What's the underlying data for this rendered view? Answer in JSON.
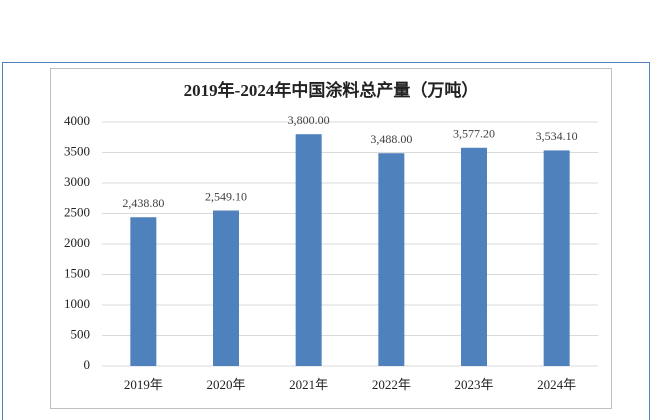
{
  "chart_data": {
    "type": "bar",
    "title": "2019年-2024年中国涂料总产量（万吨）",
    "categories": [
      "2019年",
      "2020年",
      "2021年",
      "2022年",
      "2023年",
      "2024年"
    ],
    "values": [
      2438.8,
      2549.1,
      3800,
      3488,
      3577.2,
      3534.1
    ],
    "value_labels": [
      "2,438.80",
      "2,549.10",
      "3,800.00",
      "3,488.00",
      "3,577.20",
      "3,534.10"
    ],
    "color": "#4f81bd",
    "ylim": [
      0,
      4000
    ],
    "yticks": [
      0,
      500,
      1000,
      1500,
      2000,
      2500,
      3000,
      3500,
      4000
    ],
    "grid": true
  }
}
